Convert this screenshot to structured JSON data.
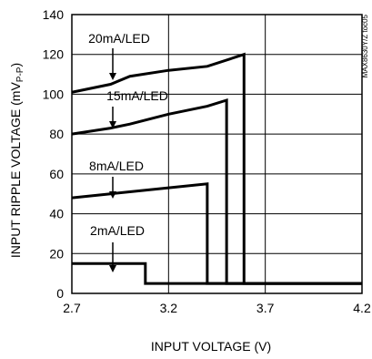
{
  "chart_data": {
    "type": "line",
    "xlabel": "INPUT VOLTAGE (V)",
    "ylabel": "INPUT RIPPLE VOLTAGE (mV",
    "ylabel_subscript": "P-P",
    "ylabel_close": ")",
    "figure_code": "MAX8630Y/Z toc05",
    "xlim": [
      2.7,
      4.2
    ],
    "ylim": [
      0,
      140
    ],
    "xticks": [
      2.7,
      3.2,
      3.7,
      4.2
    ],
    "xtick_labels": [
      "2.7",
      "3.2",
      "3.7",
      "4.2"
    ],
    "yticks": [
      0,
      20,
      40,
      60,
      80,
      100,
      120,
      140
    ],
    "ytick_labels": [
      "0",
      "20",
      "40",
      "60",
      "80",
      "100",
      "120",
      "140"
    ],
    "grid": true,
    "series": [
      {
        "name": "20mA/LED",
        "x": [
          2.7,
          2.9,
          3.0,
          3.2,
          3.4,
          3.59,
          3.59,
          3.78,
          4.2
        ],
        "y": [
          101,
          105,
          109,
          112,
          114,
          120,
          5,
          5,
          5
        ]
      },
      {
        "name": "15mA/LED",
        "x": [
          2.7,
          2.9,
          3.0,
          3.2,
          3.4,
          3.5,
          3.5,
          4.2
        ],
        "y": [
          80,
          83,
          85,
          90,
          94,
          97,
          5,
          5
        ]
      },
      {
        "name": "8mA/LED",
        "x": [
          2.7,
          2.9,
          3.0,
          3.2,
          3.4,
          3.4,
          4.2
        ],
        "y": [
          48,
          50,
          51,
          53,
          55,
          5,
          5
        ]
      },
      {
        "name": "2mA/LED",
        "x": [
          2.7,
          2.9,
          3.08,
          3.08,
          4.2
        ],
        "y": [
          15,
          15,
          15,
          5,
          5
        ]
      }
    ],
    "annotations": [
      {
        "text": "20mA/LED",
        "series": 0
      },
      {
        "text": "15mA/LED",
        "series": 1
      },
      {
        "text": "8mA/LED",
        "series": 2
      },
      {
        "text": "2mA/LED",
        "series": 3
      }
    ]
  }
}
